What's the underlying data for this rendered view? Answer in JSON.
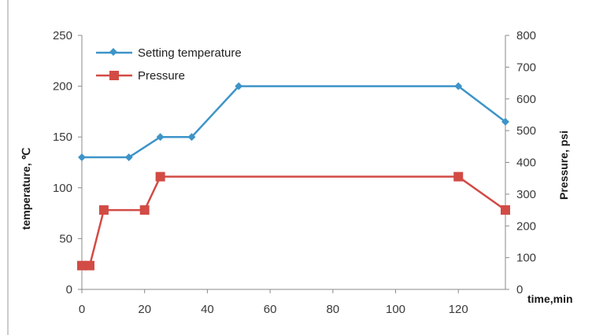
{
  "chart_data": {
    "type": "line",
    "x": [
      0,
      15,
      20,
      25,
      35,
      50,
      120,
      135
    ],
    "xlabel": "time,min",
    "xlim": [
      0,
      135
    ],
    "xticks": [
      "0",
      "20",
      "40",
      "60",
      "80",
      "100",
      "120"
    ],
    "y_left": {
      "label": "temperature, ℃",
      "lim": [
        0,
        250
      ],
      "ticks": [
        "0",
        "50",
        "100",
        "150",
        "200",
        "250"
      ]
    },
    "y_right": {
      "label": "Pressure, psi",
      "lim": [
        0,
        800
      ],
      "ticks": [
        "0",
        "100",
        "200",
        "300",
        "400",
        "500",
        "600",
        "700",
        "800"
      ]
    },
    "grid": false,
    "legend_position": "top-left",
    "series": [
      {
        "name": "Setting temperature",
        "axis": "left",
        "marker": "diamond",
        "color": "#3d94c8",
        "points": [
          [
            0,
            130
          ],
          [
            15,
            130
          ],
          [
            25,
            150
          ],
          [
            35,
            150
          ],
          [
            50,
            200
          ],
          [
            120,
            200
          ],
          [
            135,
            165
          ]
        ]
      },
      {
        "name": "Pressure",
        "axis": "right",
        "marker": "square",
        "color": "#d24b45",
        "points": [
          [
            0,
            75
          ],
          [
            2.5,
            75
          ],
          [
            7,
            250
          ],
          [
            20,
            250
          ],
          [
            25,
            355
          ],
          [
            120,
            355
          ],
          [
            135,
            250
          ]
        ]
      }
    ]
  }
}
